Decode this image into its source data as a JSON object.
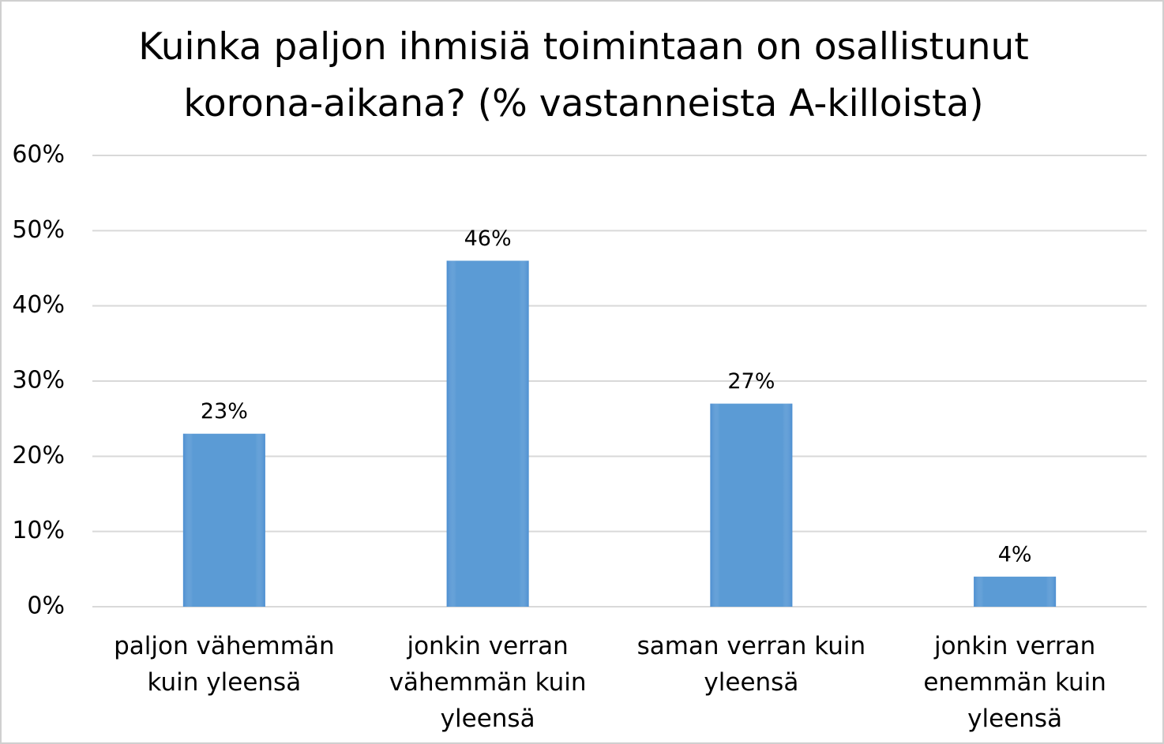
{
  "chart_data": {
    "type": "bar",
    "title": "Kuinka paljon ihmisiä toimintaan on osallistunut korona-aikana? (% vastanneista A-killoista)",
    "categories": [
      "paljon vähemmän kuin yleensä",
      "jonkin verran vähemmän kuin yleensä",
      "saman verran kuin yleensä",
      "jonkin verran enemmän kuin yleensä"
    ],
    "values": [
      23,
      46,
      27,
      4
    ],
    "value_labels": [
      "23%",
      "46%",
      "27%",
      "4%"
    ],
    "color": "#5b9bd5",
    "ylim": [
      0,
      60
    ],
    "yticks": [
      {
        "value": 0,
        "label": "0%"
      },
      {
        "value": 10,
        "label": "10%"
      },
      {
        "value": 20,
        "label": "20%"
      },
      {
        "value": 30,
        "label": "30%"
      },
      {
        "value": 40,
        "label": "40%"
      },
      {
        "value": 50,
        "label": "50%"
      },
      {
        "value": 60,
        "label": "60%"
      }
    ],
    "grid": true
  }
}
